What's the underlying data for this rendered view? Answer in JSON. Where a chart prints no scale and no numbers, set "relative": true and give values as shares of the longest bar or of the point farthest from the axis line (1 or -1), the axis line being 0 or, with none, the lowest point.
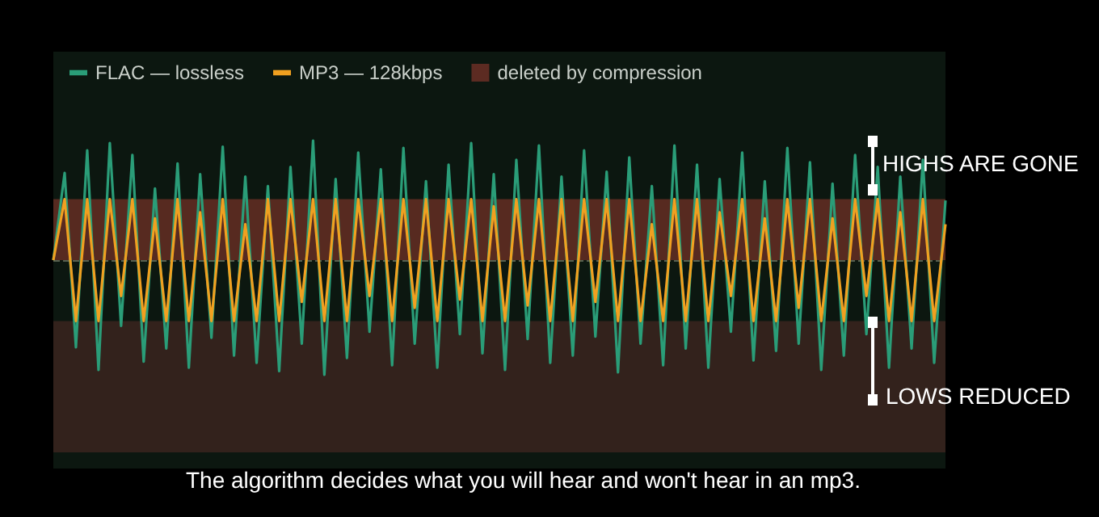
{
  "chart_data": {
    "type": "line",
    "relative": true,
    "grid": false,
    "line_style": "solid",
    "legend": "top left",
    "categories": [
      null,
      null,
      null,
      null,
      null,
      null,
      null,
      null,
      null,
      null,
      null,
      null,
      null,
      null,
      null,
      null,
      null,
      null,
      null,
      null,
      null,
      null,
      null,
      null,
      null,
      null,
      null,
      null,
      null,
      null,
      null,
      null,
      null,
      null,
      null,
      null,
      null,
      null,
      null,
      null,
      null,
      null,
      null,
      null,
      null,
      null,
      null,
      null,
      null,
      null,
      null,
      null,
      null,
      null,
      null,
      null,
      null,
      null,
      null,
      null,
      null,
      null,
      null,
      null,
      null,
      null,
      null,
      null,
      null,
      null,
      null,
      null,
      null,
      null,
      null,
      null,
      null,
      null,
      null,
      null
    ],
    "series": [
      {
        "name": "FLAC — lossless",
        "color": "#2a9d78",
        "values": [
          0,
          0.73,
          -0.73,
          0.92,
          -0.92,
          0.98,
          -0.55,
          0.88,
          -0.85,
          0.6,
          -0.74,
          0.81,
          -0.9,
          0.72,
          -0.65,
          0.95,
          -0.8,
          0.7,
          -0.86,
          0.62,
          -0.93,
          0.78,
          -0.7,
          1.0,
          -0.96,
          0.68,
          -0.82,
          0.9,
          -0.6,
          0.76,
          -0.88,
          0.94,
          -0.7,
          0.66,
          -0.9,
          0.8,
          -0.62,
          0.98,
          -0.78,
          0.72,
          -0.92,
          0.84,
          -0.66,
          0.96,
          -0.86,
          0.7,
          -0.8,
          0.92,
          -0.64,
          0.74,
          -0.94,
          0.86,
          -0.7,
          0.62,
          -0.88,
          0.96,
          -0.74,
          0.8,
          -0.9,
          0.68,
          -0.6,
          0.9,
          -0.84,
          0.66,
          -0.76,
          0.94,
          -0.7,
          0.82,
          -0.92,
          0.64,
          -0.8,
          0.88,
          -0.62,
          0.78,
          -0.9,
          0.7,
          -0.74,
          0.84,
          -0.86,
          0.5
        ]
      },
      {
        "name": "MP3 — 128kbps",
        "color": "#f0a020",
        "values": [
          0,
          0.51,
          -0.51,
          0.51,
          -0.51,
          0.51,
          -0.3,
          0.51,
          -0.51,
          0.35,
          -0.51,
          0.51,
          -0.51,
          0.4,
          -0.51,
          0.51,
          -0.51,
          0.3,
          -0.51,
          0.51,
          -0.51,
          0.51,
          -0.35,
          0.51,
          -0.51,
          0.51,
          -0.51,
          0.51,
          -0.3,
          0.51,
          -0.51,
          0.51,
          -0.4,
          0.51,
          -0.51,
          0.51,
          -0.33,
          0.51,
          -0.51,
          0.45,
          -0.51,
          0.51,
          -0.38,
          0.51,
          -0.51,
          0.51,
          -0.51,
          0.51,
          -0.35,
          0.51,
          -0.51,
          0.51,
          -0.51,
          0.3,
          -0.51,
          0.51,
          -0.51,
          0.51,
          -0.51,
          0.4,
          -0.3,
          0.51,
          -0.51,
          0.35,
          -0.51,
          0.51,
          -0.4,
          0.51,
          -0.51,
          0.35,
          -0.51,
          0.51,
          -0.3,
          0.51,
          -0.51,
          0.4,
          -0.51,
          0.51,
          -0.51,
          0.3
        ]
      }
    ],
    "bands": [
      {
        "axis": "y",
        "from": 0,
        "to": 0.51,
        "label": "deleted by compression",
        "color": "#5c2b22"
      },
      {
        "axis": "y",
        "from": -1.61,
        "to": -0.51,
        "color": "#36231d"
      }
    ],
    "ref_lines": [
      {
        "axis": "y",
        "value": 0,
        "color": "#55604f",
        "line_style": "dashed"
      }
    ],
    "annotations": [
      "HIGHS ARE GONE",
      "LOWS REDUCED",
      "The algorithm decides what you will hear and won't hear in an mp3."
    ]
  }
}
